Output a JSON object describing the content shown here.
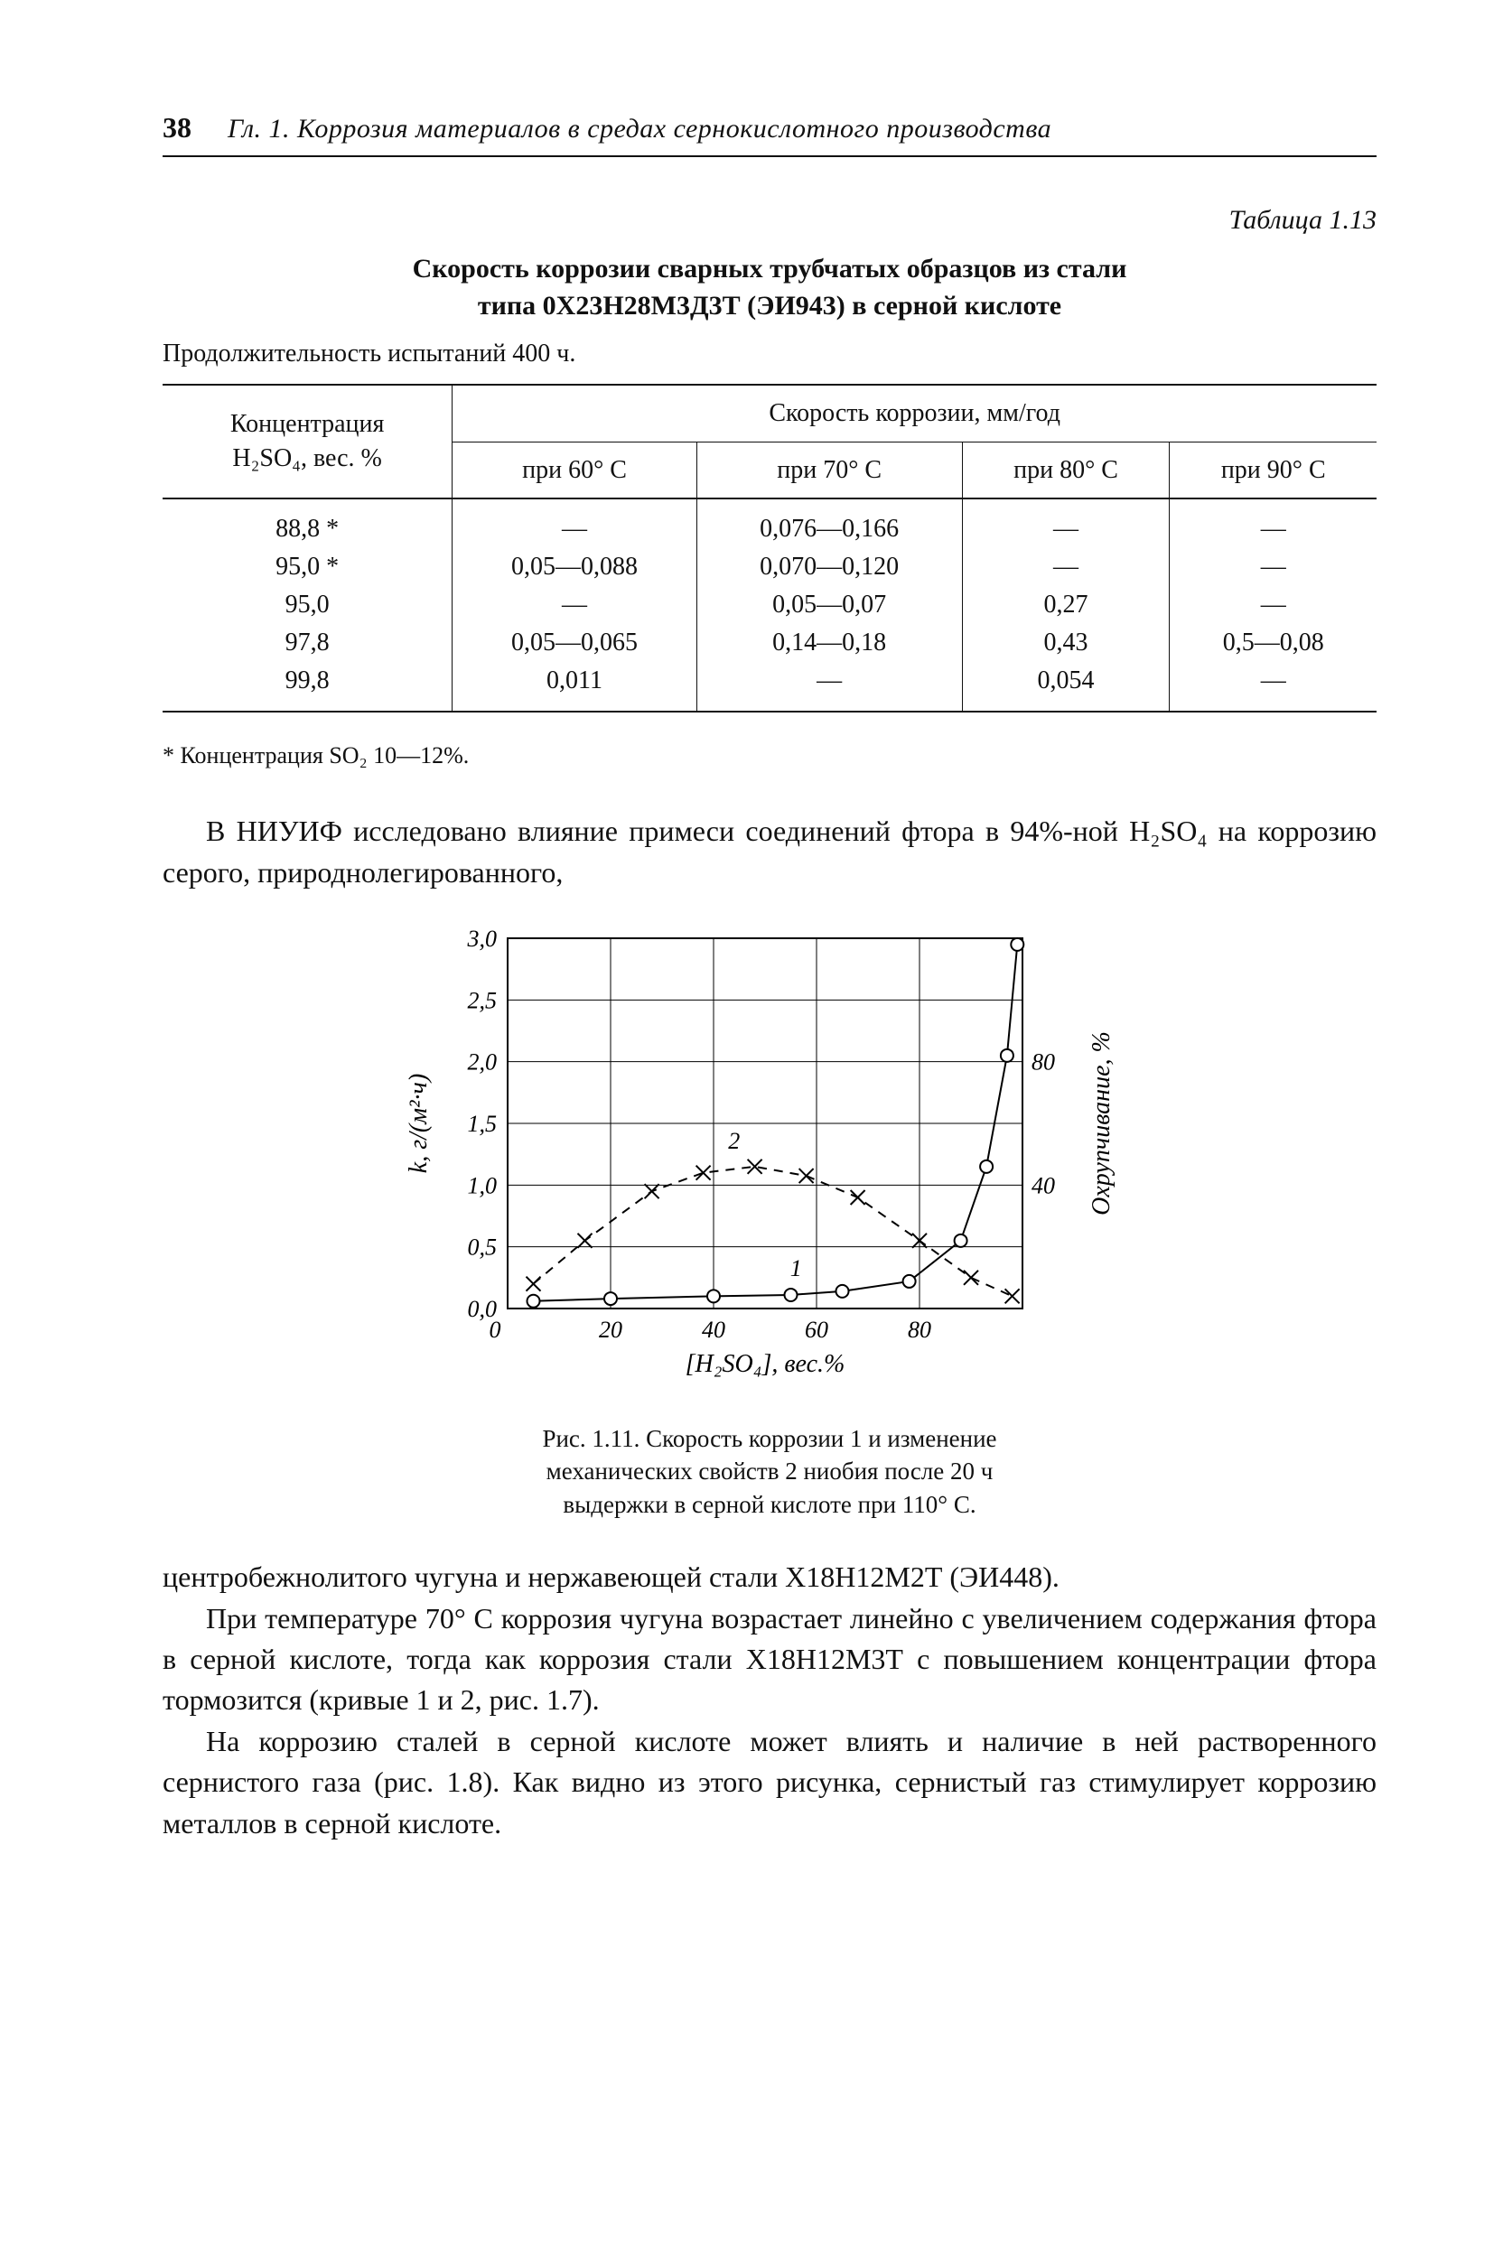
{
  "header": {
    "page_number": "38",
    "running_title": "Гл. 1. Коррозия материалов в средах сернокислотного производства"
  },
  "table": {
    "label": "Таблица 1.13",
    "title_line1": "Скорость коррозии сварных трубчатых образцов из стали",
    "title_line2": "типа 0Х23Н28М3Д3Т (ЭИ943) в серной кислоте",
    "duration": "Продолжительность испытаний 400 ч.",
    "col_rowheader_l1": "Концентрация",
    "col_rowheader_l2": "H₂SO₄, вес. %",
    "col_group": "Скорость коррозии, мм/год",
    "col_60": "при 60° C",
    "col_70": "при 70° C",
    "col_80": "при 80° C",
    "col_90": "при 90° C",
    "rows": [
      {
        "c": "88,8 *",
        "v60": "—",
        "v70": "0,076—0,166",
        "v80": "—",
        "v90": "—"
      },
      {
        "c": "95,0 *",
        "v60": "0,05—0,088",
        "v70": "0,070—0,120",
        "v80": "—",
        "v90": "—"
      },
      {
        "c": "95,0",
        "v60": "—",
        "v70": "0,05—0,07",
        "v80": "0,27",
        "v90": "—"
      },
      {
        "c": "97,8",
        "v60": "0,05—0,065",
        "v70": "0,14—0,18",
        "v80": "0,43",
        "v90": "0,5—0,08"
      },
      {
        "c": "99,8",
        "v60": "0,011",
        "v70": "—",
        "v80": "0,054",
        "v90": "—"
      }
    ],
    "footnote": "* Концентрация SO₂ 10—12%."
  },
  "body": {
    "p1": "В НИУИФ исследовано влияние примеси соединений фтора в 94%-ной H₂SO₄ на коррозию серого, природнолегированного,",
    "p2": "центробежнолитого чугуна и нержавеющей стали Х18Н12М2Т (ЭИ448).",
    "p3": "При температуре 70° C коррозия чугуна возрастает линейно с увеличением содержания фтора в серной кислоте, тогда как коррозия стали Х18Н12М3Т с повышением концентрации фтора тормозится (кривые 1 и 2, рис. 1.7).",
    "p4": "На коррозию сталей в серной кислоте может влиять и наличие в ней растворенного сернистого газа (рис. 1.8). Как видно из этого рисунка, сернистый газ стимулирует коррозию металлов в серной кислоте."
  },
  "figure": {
    "caption_l1": "Рис. 1.11. Скорость коррозии 1 и изменение",
    "caption_l2": "механических свойств 2 ниобия после 20 ч",
    "caption_l3": "выдержки в серной кислоте при 110° C.",
    "chart": {
      "type": "line",
      "y_left_label": "k, г/(м²·ч)",
      "y_right_label": "Охрупчивание, %",
      "x_label": "[H₂SO₄], вес.%",
      "x_ticks": [
        0,
        20,
        40,
        60,
        80
      ],
      "xlim": [
        0,
        100
      ],
      "y_left_ticks": [
        0,
        0.5,
        1.0,
        1.5,
        2.0,
        2.5,
        3.0
      ],
      "y_left_lim": [
        0,
        3.0
      ],
      "y_right_ticks": [
        40,
        80
      ],
      "y_right_lim": [
        0,
        120
      ],
      "grid_color": "#000000",
      "background_color": "#ffffff",
      "axis_color": "#000000",
      "series": [
        {
          "name": "1",
          "label_pos": {
            "x": 56,
            "y": 0.22
          },
          "style": "solid",
          "marker": "circle-open",
          "marker_size": 7,
          "line_width": 2,
          "points_left_axis": [
            {
              "x": 5,
              "y": 0.06
            },
            {
              "x": 20,
              "y": 0.08
            },
            {
              "x": 40,
              "y": 0.1
            },
            {
              "x": 55,
              "y": 0.11
            },
            {
              "x": 65,
              "y": 0.14
            },
            {
              "x": 78,
              "y": 0.22
            },
            {
              "x": 88,
              "y": 0.55
            },
            {
              "x": 93,
              "y": 1.15
            },
            {
              "x": 97,
              "y": 2.05
            },
            {
              "x": 99,
              "y": 2.95
            }
          ]
        },
        {
          "name": "2",
          "label_pos": {
            "x": 44,
            "y": 1.25
          },
          "style": "dashed",
          "marker": "x",
          "marker_size": 8,
          "line_width": 2,
          "points_right_axis": [
            {
              "x": 5,
              "y": 8
            },
            {
              "x": 15,
              "y": 22
            },
            {
              "x": 28,
              "y": 38
            },
            {
              "x": 38,
              "y": 44
            },
            {
              "x": 48,
              "y": 46
            },
            {
              "x": 58,
              "y": 43
            },
            {
              "x": 68,
              "y": 36
            },
            {
              "x": 80,
              "y": 22
            },
            {
              "x": 90,
              "y": 10
            },
            {
              "x": 98,
              "y": 4
            }
          ]
        }
      ],
      "font_size_axis": 26,
      "font_size_label": 28
    }
  }
}
